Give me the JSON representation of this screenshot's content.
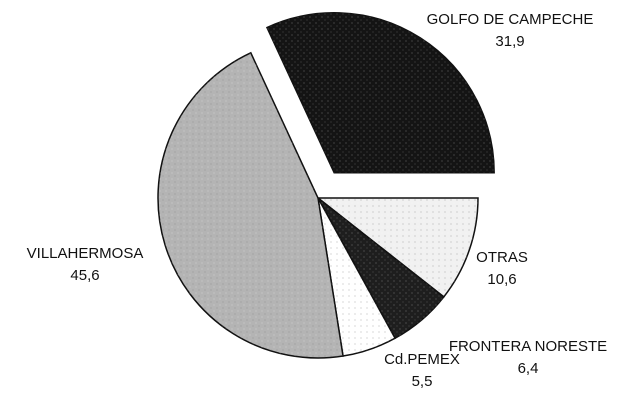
{
  "chart_data": {
    "type": "pie",
    "categories": [
      "GOLFO DE CAMPECHE",
      "OTRAS",
      "FRONTERA NORESTE",
      "Cd.PEMEX",
      "VILLAHERMOSA"
    ],
    "values": [
      31.9,
      10.6,
      6.4,
      5.5,
      45.6
    ],
    "value_labels": [
      "31,9",
      "10,6",
      "6,4",
      "5,5",
      "45,6"
    ],
    "colors": [
      "#141414",
      "#f1f1f1",
      "#1e1e1e",
      "#ffffff",
      "#b4b4b4"
    ],
    "exploded": [
      "GOLFO DE CAMPECHE"
    ]
  }
}
